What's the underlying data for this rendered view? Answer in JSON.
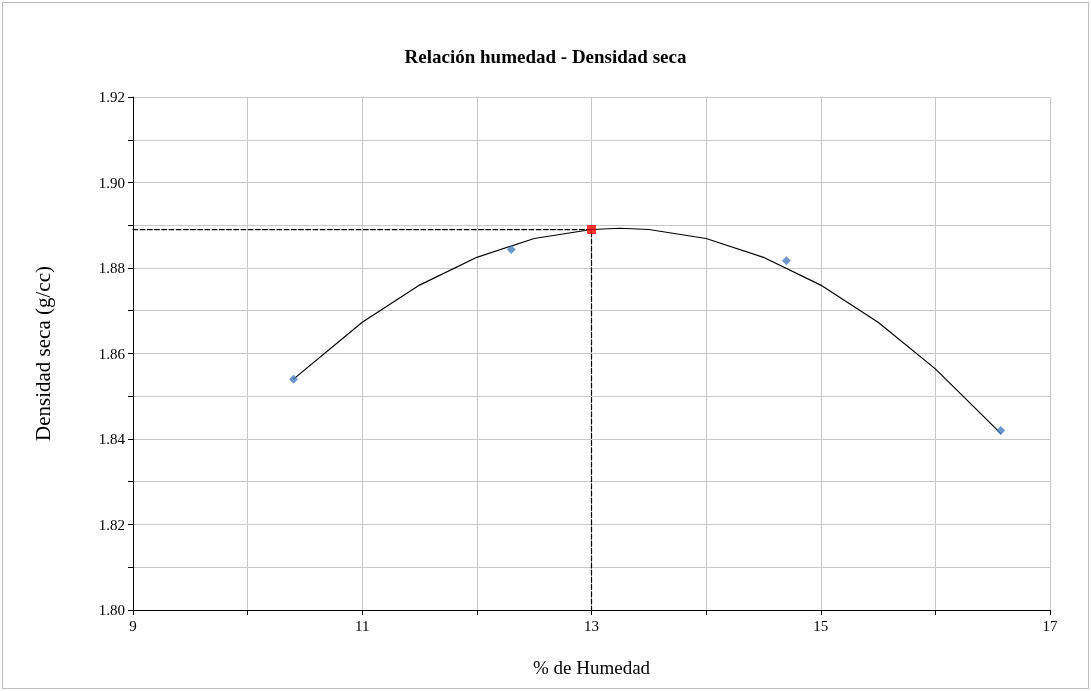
{
  "chart_data": {
    "type": "scatter",
    "title": "Relación humedad - Densidad seca",
    "xlabel": "% de Humedad",
    "ylabel": "Densidad seca (g/cc)",
    "xlim": [
      9,
      17
    ],
    "xticks": [
      9,
      {
        "value": 10,
        "label": null
      },
      11,
      {
        "value": 12,
        "label": null
      },
      13,
      {
        "value": 14,
        "label": null
      },
      15,
      {
        "value": 16,
        "label": null
      },
      17
    ],
    "ylim": [
      1.8,
      1.92
    ],
    "yticks": [
      {
        "value": 1.8,
        "label": "1.80"
      },
      {
        "value": 1.81,
        "label": null
      },
      1.82,
      {
        "value": 1.83,
        "label": null
      },
      1.84,
      {
        "value": 1.85,
        "label": null
      },
      1.86,
      {
        "value": 1.87,
        "label": null
      },
      1.88,
      {
        "value": 1.89,
        "label": null
      },
      {
        "value": 1.9,
        "label": "1.90"
      },
      {
        "value": 1.91,
        "label": null
      },
      1.92
    ],
    "grid": true,
    "series": [
      {
        "type": "line",
        "color": "#000000",
        "marker": "none",
        "line_style": "solid",
        "x": [
          10.4,
          11,
          11.5,
          12,
          12.5,
          13,
          13.25,
          13.5,
          14,
          14.5,
          15,
          15.5,
          16,
          16.57
        ],
        "values": [
          1.854,
          1.8673,
          1.876,
          1.8825,
          1.8869,
          1.889,
          1.8893,
          1.889,
          1.8869,
          1.8825,
          1.876,
          1.8673,
          1.8564,
          1.8413
        ]
      },
      {
        "type": "line",
        "color": "#000000",
        "marker": "none",
        "line_style": "dashed",
        "x": [
          9,
          13,
          13
        ],
        "values": [
          1.889,
          1.889,
          1.8
        ]
      },
      {
        "type": "scatter",
        "color": "#4a7ebb",
        "marker": "diamond",
        "x": [
          10.4,
          12.3,
          14.7,
          16.57
        ],
        "values": [
          1.854,
          1.8843,
          1.8817,
          1.842
        ]
      },
      {
        "type": "scatter",
        "color": "#ff0000",
        "marker": "square",
        "x": [
          13
        ],
        "values": [
          1.889
        ]
      }
    ]
  }
}
